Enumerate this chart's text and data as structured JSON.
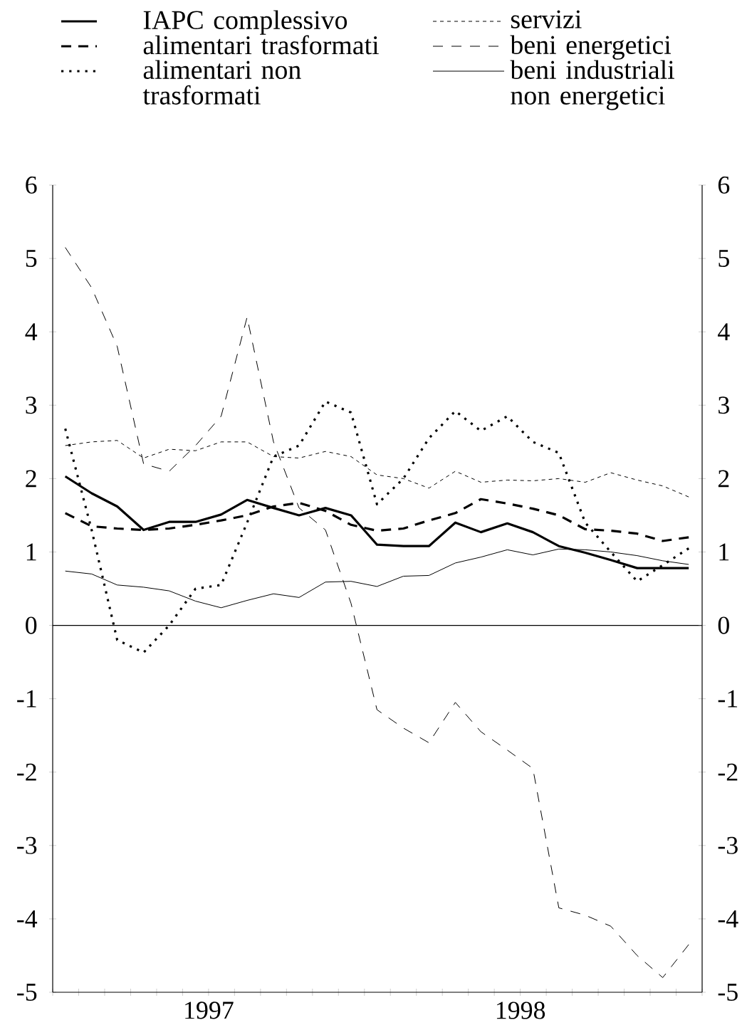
{
  "chart_data": {
    "type": "line",
    "x": [
      "1997-01-16",
      "1997-02-15",
      "1997-03-16",
      "1997-04-16",
      "1997-05-16",
      "1997-06-16",
      "1997-07-16",
      "1997-08-16",
      "1997-09-16",
      "1997-10-16",
      "1997-11-16",
      "1997-12-16",
      "1998-01-16",
      "1998-02-15",
      "1998-03-16",
      "1998-04-16",
      "1998-05-16",
      "1998-06-16",
      "1998-07-16",
      "1998-08-16",
      "1998-09-16",
      "1998-10-16",
      "1998-11-16",
      "1998-12-16",
      "1999-01-16"
    ],
    "xlim": [
      "1997-01-01",
      "1999-02-01"
    ],
    "xticks": [
      {
        "value": "1997-01-01",
        "label": null
      },
      {
        "value": "1997-02-01",
        "label": null
      },
      {
        "value": "1997-03-01",
        "label": null
      },
      {
        "value": "1997-04-01",
        "label": null
      },
      {
        "value": "1997-05-01",
        "label": null
      },
      {
        "value": "1997-06-01",
        "label": null
      },
      {
        "value": "1997-07-01",
        "label": "1997"
      },
      {
        "value": "1997-08-01",
        "label": null
      },
      {
        "value": "1997-09-01",
        "label": null
      },
      {
        "value": "1997-10-01",
        "label": null
      },
      {
        "value": "1997-11-01",
        "label": null
      },
      {
        "value": "1997-12-01",
        "label": null
      },
      {
        "value": "1998-01-01",
        "label": null
      },
      {
        "value": "1998-02-01",
        "label": null
      },
      {
        "value": "1998-03-01",
        "label": null
      },
      {
        "value": "1998-04-01",
        "label": null
      },
      {
        "value": "1998-05-01",
        "label": null
      },
      {
        "value": "1998-06-01",
        "label": null
      },
      {
        "value": "1998-07-01",
        "label": "1998"
      },
      {
        "value": "1998-08-01",
        "label": null
      },
      {
        "value": "1998-09-01",
        "label": null
      },
      {
        "value": "1998-10-01",
        "label": null
      },
      {
        "value": "1998-11-01",
        "label": null
      },
      {
        "value": "1998-12-01",
        "label": null
      },
      {
        "value": "1999-01-01",
        "label": null
      },
      {
        "value": "1999-02-01",
        "label": null
      }
    ],
    "ylim": [
      -5,
      6
    ],
    "yticks": [
      -5,
      -4,
      -3,
      -2,
      -1,
      0,
      1,
      2,
      3,
      4,
      5,
      6
    ],
    "y2lim": [
      -5,
      6
    ],
    "y2ticks": [
      -5,
      -4,
      -3,
      -2,
      -1,
      0,
      1,
      2,
      3,
      4,
      5,
      6
    ],
    "legend": "top",
    "ref_lines": [
      {
        "axis": "y",
        "value": 0
      }
    ],
    "series": [
      {
        "name": "IAPC complessivo",
        "color": "#000000",
        "line_style": "solid",
        "values": [
          2.03,
          1.8,
          1.62,
          1.3,
          1.41,
          1.41,
          1.51,
          1.71,
          1.6,
          1.5,
          1.6,
          1.5,
          1.1,
          1.08,
          1.08,
          1.4,
          1.27,
          1.39,
          1.27,
          1.08,
          0.99,
          0.89,
          0.78,
          0.78,
          0.78
        ]
      },
      {
        "name": "alimentari trasformati",
        "color": "#000000",
        "line_style": "dashed",
        "values": [
          1.53,
          1.35,
          1.32,
          1.3,
          1.32,
          1.37,
          1.43,
          1.5,
          1.62,
          1.67,
          1.56,
          1.37,
          1.29,
          1.32,
          1.43,
          1.53,
          1.72,
          1.66,
          1.59,
          1.5,
          1.31,
          1.29,
          1.25,
          1.15,
          1.2
        ]
      },
      {
        "name": "alimentari non trasformati",
        "color": "#000000",
        "line_style": "dotted",
        "values": [
          2.68,
          1.3,
          -0.2,
          -0.37,
          0.0,
          0.5,
          0.55,
          1.4,
          2.3,
          2.45,
          3.05,
          2.9,
          1.65,
          2.0,
          2.55,
          2.92,
          2.65,
          2.85,
          2.5,
          2.35,
          1.4,
          1.0,
          0.6,
          0.82,
          1.05
        ]
      },
      {
        "name": "servizi",
        "color": "#000000",
        "line_style": "dotted",
        "values": [
          2.45,
          2.5,
          2.52,
          2.28,
          2.4,
          2.38,
          2.5,
          2.5,
          2.3,
          2.28,
          2.37,
          2.3,
          2.05,
          2.0,
          1.87,
          2.1,
          1.95,
          1.98,
          1.97,
          2.0,
          1.95,
          2.08,
          1.98,
          1.9,
          1.75
        ]
      },
      {
        "name": "beni energetici",
        "color": "#000000",
        "line_style": "dashed",
        "values": [
          5.15,
          4.6,
          3.8,
          2.2,
          2.1,
          2.45,
          2.85,
          4.2,
          2.5,
          1.6,
          1.3,
          0.3,
          -1.15,
          -1.4,
          -1.6,
          -1.05,
          -1.45,
          -1.7,
          -1.95,
          -3.85,
          -3.95,
          -4.1,
          -4.5,
          -4.8,
          -4.35
        ]
      },
      {
        "name": "beni industriali non energetici",
        "color": "#000000",
        "line_style": "solid",
        "values": [
          0.74,
          0.7,
          0.55,
          0.52,
          0.47,
          0.33,
          0.24,
          0.34,
          0.43,
          0.38,
          0.59,
          0.6,
          0.53,
          0.67,
          0.68,
          0.85,
          0.93,
          1.03,
          0.96,
          1.04,
          1.03,
          1.0,
          0.95,
          0.88,
          0.83
        ]
      }
    ]
  }
}
